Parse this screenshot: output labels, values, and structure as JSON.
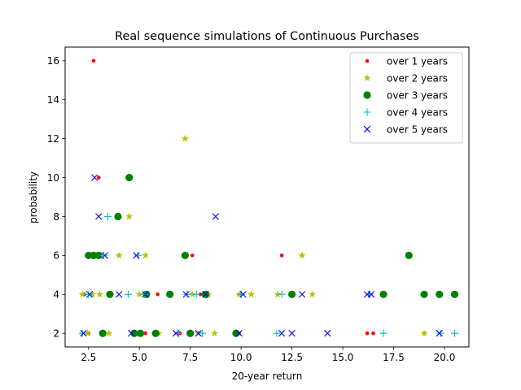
{
  "chart_data": {
    "type": "scatter",
    "title": "Real sequence simulations of Continuous Purchases",
    "xlabel": "20-year return",
    "ylabel": "probability",
    "xlim": [
      1.35,
      21.2
    ],
    "ylim": [
      1.3,
      16.7
    ],
    "xticks": [
      2.5,
      5.0,
      7.5,
      10.0,
      12.5,
      15.0,
      17.5,
      20.0
    ],
    "xtick_labels": [
      "2.5",
      "5.0",
      "7.5",
      "10.0",
      "12.5",
      "15.0",
      "17.5",
      "20.0"
    ],
    "yticks": [
      2,
      4,
      6,
      8,
      10,
      12,
      14,
      16
    ],
    "ytick_labels": [
      "2",
      "4",
      "6",
      "8",
      "10",
      "12",
      "14",
      "16"
    ],
    "grid": false,
    "legend": {
      "placement": "top-right"
    },
    "series": [
      {
        "name": "over 1 years",
        "marker": "point",
        "color": "#ff0000",
        "points": [
          [
            2.75,
            16
          ],
          [
            3.0,
            10
          ],
          [
            2.5,
            2
          ],
          [
            2.3,
            4
          ],
          [
            4.8,
            2
          ],
          [
            5.3,
            2
          ],
          [
            5.9,
            4
          ],
          [
            7.0,
            2
          ],
          [
            7.6,
            6
          ],
          [
            8.0,
            4
          ],
          [
            9.9,
            2
          ],
          [
            12.0,
            6
          ],
          [
            16.2,
            2
          ],
          [
            16.5,
            2
          ],
          [
            19.0,
            2
          ]
        ]
      },
      {
        "name": "over 2 years",
        "marker": "star",
        "color": "#bfbf00",
        "points": [
          [
            2.2,
            4
          ],
          [
            2.45,
            2
          ],
          [
            2.7,
            4
          ],
          [
            3.05,
            4
          ],
          [
            3.5,
            2
          ],
          [
            4.0,
            6
          ],
          [
            4.5,
            8
          ],
          [
            5.0,
            4
          ],
          [
            5.3,
            6
          ],
          [
            5.95,
            2
          ],
          [
            7.25,
            12
          ],
          [
            7.6,
            4
          ],
          [
            7.9,
            2
          ],
          [
            8.4,
            4
          ],
          [
            8.7,
            2
          ],
          [
            9.9,
            4
          ],
          [
            10.5,
            4
          ],
          [
            11.8,
            4
          ],
          [
            13.0,
            6
          ],
          [
            13.5,
            4
          ],
          [
            19.0,
            2
          ]
        ]
      },
      {
        "name": "over 3 years",
        "marker": "circle",
        "color": "#008000",
        "points": [
          [
            2.5,
            6
          ],
          [
            2.75,
            6
          ],
          [
            3.0,
            6
          ],
          [
            3.2,
            2
          ],
          [
            3.55,
            4
          ],
          [
            3.95,
            8
          ],
          [
            4.5,
            10
          ],
          [
            4.75,
            2
          ],
          [
            5.05,
            2
          ],
          [
            5.35,
            4
          ],
          [
            5.8,
            2
          ],
          [
            6.5,
            4
          ],
          [
            7.25,
            6
          ],
          [
            7.5,
            2
          ],
          [
            8.25,
            4
          ],
          [
            9.75,
            2
          ],
          [
            12.5,
            4
          ],
          [
            18.25,
            6
          ],
          [
            17.0,
            4
          ],
          [
            19.0,
            4
          ],
          [
            19.75,
            4
          ],
          [
            20.5,
            4
          ]
        ]
      },
      {
        "name": "over 4 years",
        "marker": "plus",
        "color": "#00bfbf",
        "points": [
          [
            2.2,
            2
          ],
          [
            2.5,
            4
          ],
          [
            3.45,
            8
          ],
          [
            3.25,
            6
          ],
          [
            4.45,
            4
          ],
          [
            4.95,
            6
          ],
          [
            5.25,
            4
          ],
          [
            6.9,
            2
          ],
          [
            7.35,
            4
          ],
          [
            7.8,
            4
          ],
          [
            8.1,
            2
          ],
          [
            10.0,
            4
          ],
          [
            11.75,
            2
          ],
          [
            12.0,
            4
          ],
          [
            16.3,
            4
          ],
          [
            17.0,
            2
          ],
          [
            20.5,
            2
          ],
          [
            19.8,
            2
          ]
        ]
      },
      {
        "name": "over 5 years",
        "marker": "x",
        "color": "#0000ff",
        "points": [
          [
            2.25,
            2
          ],
          [
            2.55,
            4
          ],
          [
            2.8,
            10
          ],
          [
            3.0,
            8
          ],
          [
            3.3,
            6
          ],
          [
            4.0,
            4
          ],
          [
            4.6,
            2
          ],
          [
            4.85,
            6
          ],
          [
            5.3,
            4
          ],
          [
            6.8,
            2
          ],
          [
            7.3,
            4
          ],
          [
            7.9,
            2
          ],
          [
            8.25,
            4
          ],
          [
            8.75,
            8
          ],
          [
            9.9,
            2
          ],
          [
            10.1,
            4
          ],
          [
            12.0,
            2
          ],
          [
            12.5,
            2
          ],
          [
            13.0,
            4
          ],
          [
            14.25,
            2
          ],
          [
            16.2,
            4
          ],
          [
            16.4,
            4
          ],
          [
            19.75,
            2
          ]
        ]
      }
    ]
  }
}
